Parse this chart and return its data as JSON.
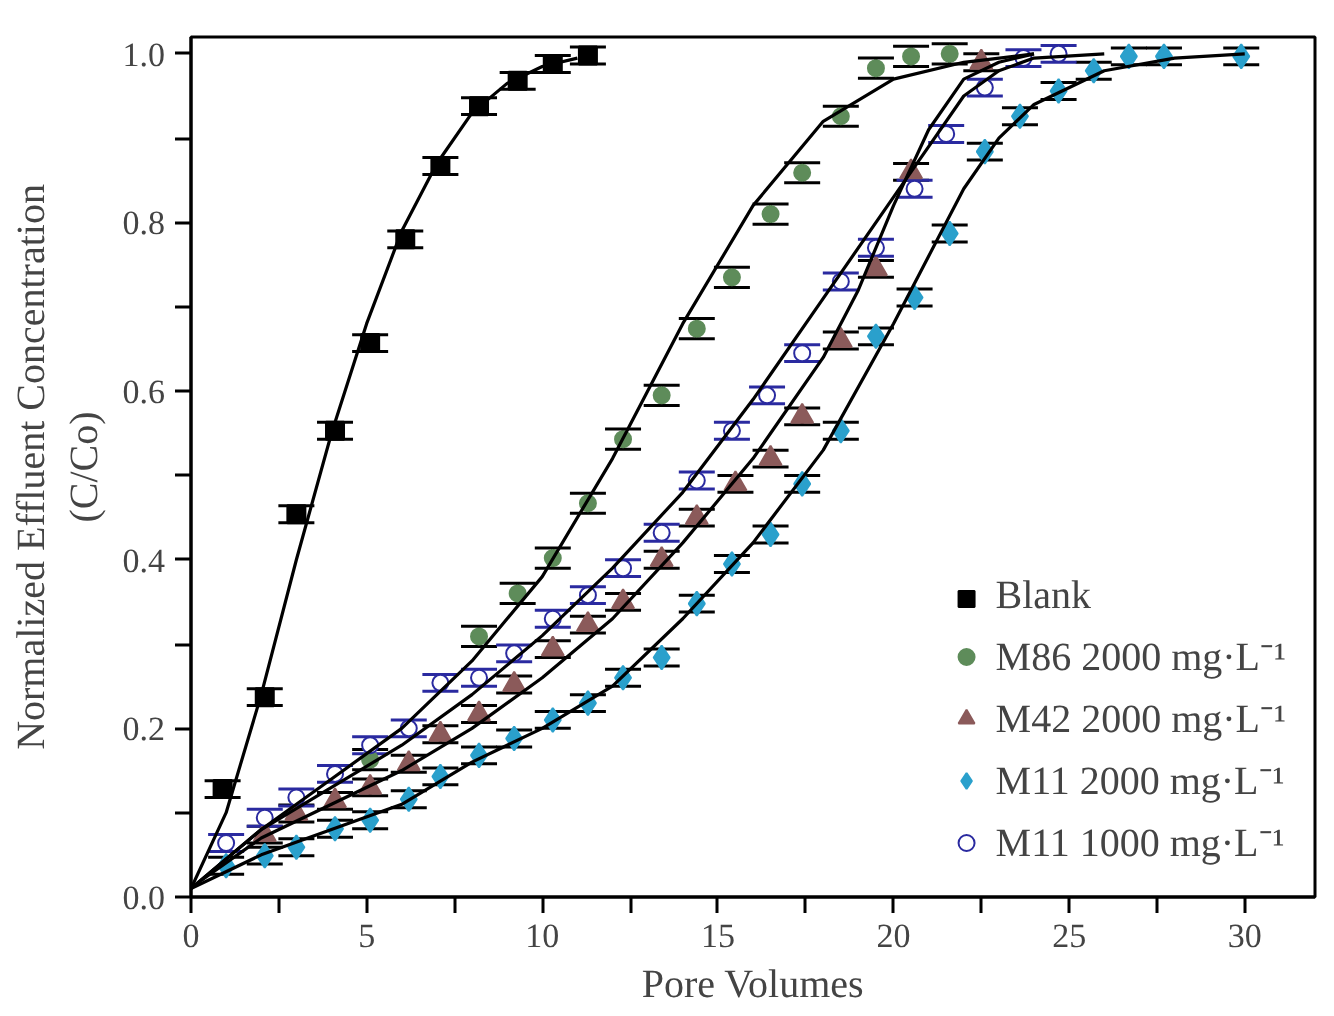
{
  "chart_data": {
    "type": "scatter",
    "xlabel": "Pore Volumes",
    "ylabel": "Normalized Effluent Concentration\n(C/Co)",
    "xlim": [
      0,
      32
    ],
    "ylim": [
      0,
      1.02
    ],
    "xticks": [
      0,
      {
        "value": 2.5,
        "label": null
      },
      5,
      {
        "value": 7.5,
        "label": null
      },
      10,
      {
        "value": 12.5,
        "label": null
      },
      15,
      {
        "value": 17.5,
        "label": null
      },
      20,
      {
        "value": 22.5,
        "label": null
      },
      25,
      {
        "value": 27.5,
        "label": null
      },
      30
    ],
    "yticks": [
      {
        "value": 0,
        "label": "0.0"
      },
      {
        "value": 0.1,
        "label": null
      },
      0.2,
      {
        "value": 0.3,
        "label": null
      },
      0.4,
      {
        "value": 0.5,
        "label": null
      },
      0.6,
      {
        "value": 0.7,
        "label": null
      },
      0.8,
      {
        "value": 0.9,
        "label": null
      },
      {
        "value": 1.0,
        "label": "1.0"
      }
    ],
    "grid": false,
    "legend": "bottom right",
    "series": [
      {
        "name": "Blank",
        "color": "#000000",
        "marker": "square",
        "x": [
          0.9,
          2.1,
          3.0,
          4.1,
          5.1,
          6.1,
          7.1,
          8.2,
          9.3,
          10.3,
          11.3
        ],
        "values": [
          0.128,
          0.237,
          0.454,
          0.553,
          0.657,
          0.78,
          0.867,
          0.938,
          0.968,
          0.988,
          0.998
        ],
        "errors": [
          0.01,
          0.01,
          0.01,
          0.01,
          0.01,
          0.01,
          0.01,
          0.01,
          0.01,
          0.01,
          0.01
        ]
      },
      {
        "name": "M86 2000 mg·L⁻¹",
        "color": "#5e8c5a",
        "marker": "circle",
        "x": [
          5.1,
          8.2,
          9.3,
          10.3,
          11.3,
          12.3,
          13.4,
          14.4,
          15.4,
          16.5,
          17.4,
          18.5,
          19.5,
          20.5,
          21.6
        ],
        "values": [
          0.163,
          0.309,
          0.36,
          0.402,
          0.467,
          0.543,
          0.595,
          0.674,
          0.735,
          0.81,
          0.859,
          0.926,
          0.983,
          0.997,
          1.0
        ],
        "errors": [
          0.012,
          0.012,
          0.012,
          0.012,
          0.012,
          0.012,
          0.012,
          0.012,
          0.012,
          0.012,
          0.012,
          0.012,
          0.012,
          0.012,
          0.012
        ]
      },
      {
        "name": "M42 2000 mg·L⁻¹",
        "color": "#8b5a5a",
        "marker": "triangle",
        "x": [
          2.1,
          3.0,
          4.1,
          5.1,
          6.2,
          7.1,
          8.2,
          9.2,
          10.3,
          11.3,
          12.3,
          13.4,
          14.4,
          15.5,
          16.5,
          17.4,
          18.5,
          19.5,
          20.5,
          22.5
        ],
        "values": [
          0.074,
          0.099,
          0.114,
          0.13,
          0.158,
          0.193,
          0.217,
          0.252,
          0.294,
          0.323,
          0.35,
          0.4,
          0.45,
          0.49,
          0.52,
          0.57,
          0.66,
          0.745,
          0.86,
          0.99
        ],
        "errors": [
          0.01,
          0.01,
          0.01,
          0.01,
          0.01,
          0.01,
          0.01,
          0.01,
          0.01,
          0.01,
          0.01,
          0.01,
          0.01,
          0.01,
          0.01,
          0.01,
          0.01,
          0.01,
          0.01,
          0.01
        ]
      },
      {
        "name": "M11 2000 mg·L⁻¹",
        "color": "#2aa0cc",
        "marker": "diamond",
        "x": [
          1.0,
          2.1,
          3.0,
          4.1,
          5.1,
          6.2,
          7.1,
          8.2,
          9.2,
          10.3,
          11.3,
          12.3,
          13.4,
          14.4,
          15.4,
          16.5,
          17.4,
          18.5,
          19.5,
          20.6,
          21.6,
          22.6,
          23.6,
          24.7,
          25.7,
          26.7,
          27.7,
          29.9
        ],
        "values": [
          0.037,
          0.049,
          0.059,
          0.081,
          0.091,
          0.116,
          0.143,
          0.168,
          0.188,
          0.21,
          0.23,
          0.26,
          0.284,
          0.348,
          0.395,
          0.43,
          0.49,
          0.553,
          0.665,
          0.711,
          0.787,
          0.884,
          0.926,
          0.956,
          0.98,
          0.997,
          0.997,
          0.997
        ],
        "errors": [
          0.01,
          0.01,
          0.01,
          0.01,
          0.01,
          0.01,
          0.01,
          0.01,
          0.01,
          0.01,
          0.01,
          0.01,
          0.01,
          0.01,
          0.01,
          0.01,
          0.01,
          0.01,
          0.01,
          0.01,
          0.01,
          0.01,
          0.01,
          0.01,
          0.01,
          0.01,
          0.01,
          0.01
        ]
      },
      {
        "name": "M11 1000 mg·L⁻¹",
        "color": "#2a2aa0",
        "marker": "circle",
        "x": [
          1.0,
          2.1,
          3.0,
          4.1,
          5.1,
          6.2,
          7.1,
          8.2,
          9.2,
          10.3,
          11.3,
          12.3,
          13.4,
          14.4,
          15.4,
          16.4,
          17.4,
          18.5,
          19.5,
          20.6,
          21.5,
          22.6,
          23.7,
          24.7
        ],
        "values": [
          0.064,
          0.094,
          0.118,
          0.146,
          0.18,
          0.2,
          0.254,
          0.26,
          0.289,
          0.33,
          0.358,
          0.39,
          0.432,
          0.494,
          0.553,
          0.595,
          0.645,
          0.73,
          0.77,
          0.84,
          0.905,
          0.96,
          0.995,
          1.0
        ],
        "errors": [
          0.01,
          0.01,
          0.01,
          0.01,
          0.01,
          0.01,
          0.01,
          0.01,
          0.01,
          0.01,
          0.01,
          0.01,
          0.01,
          0.01,
          0.01,
          0.01,
          0.01,
          0.01,
          0.01,
          0.01,
          0.01,
          0.01,
          0.01,
          0.01
        ]
      },
      {
        "type": "line",
        "color": "#000000",
        "x": [
          0,
          1,
          2,
          3,
          4,
          5,
          6,
          7,
          8,
          9,
          10,
          11
        ],
        "values": [
          0.01,
          0.1,
          0.24,
          0.4,
          0.55,
          0.68,
          0.79,
          0.87,
          0.93,
          0.965,
          0.985,
          0.995
        ]
      },
      {
        "type": "line",
        "color": "#000000",
        "x": [
          0,
          2,
          4,
          6,
          8,
          10,
          12,
          14,
          16,
          18,
          20,
          22,
          24
        ],
        "values": [
          0.01,
          0.08,
          0.14,
          0.2,
          0.28,
          0.38,
          0.52,
          0.68,
          0.82,
          0.92,
          0.97,
          0.99,
          1.0
        ]
      },
      {
        "type": "line",
        "color": "#000000",
        "x": [
          0,
          2,
          4,
          6,
          8,
          10,
          12,
          14,
          16,
          18,
          20,
          21,
          22,
          23,
          24,
          26
        ],
        "values": [
          0.01,
          0.08,
          0.13,
          0.18,
          0.24,
          0.31,
          0.39,
          0.48,
          0.59,
          0.71,
          0.83,
          0.89,
          0.95,
          0.98,
          0.995,
          1.0
        ]
      },
      {
        "type": "line",
        "color": "#000000",
        "x": [
          0.3,
          2,
          4,
          6,
          8,
          10,
          12,
          14,
          16,
          18,
          19,
          20,
          21,
          22,
          23,
          24
        ],
        "values": [
          0.02,
          0.07,
          0.11,
          0.15,
          0.2,
          0.26,
          0.33,
          0.42,
          0.52,
          0.64,
          0.72,
          0.82,
          0.91,
          0.97,
          0.99,
          1.0
        ]
      },
      {
        "type": "line",
        "color": "#000000",
        "x": [
          0,
          2,
          4,
          6,
          8,
          10,
          12,
          14,
          16,
          18,
          20,
          21,
          22,
          23,
          24,
          26,
          28,
          30
        ],
        "values": [
          0.01,
          0.05,
          0.08,
          0.11,
          0.16,
          0.2,
          0.25,
          0.33,
          0.42,
          0.53,
          0.68,
          0.76,
          0.84,
          0.9,
          0.94,
          0.98,
          0.995,
          1.0
        ]
      }
    ]
  }
}
